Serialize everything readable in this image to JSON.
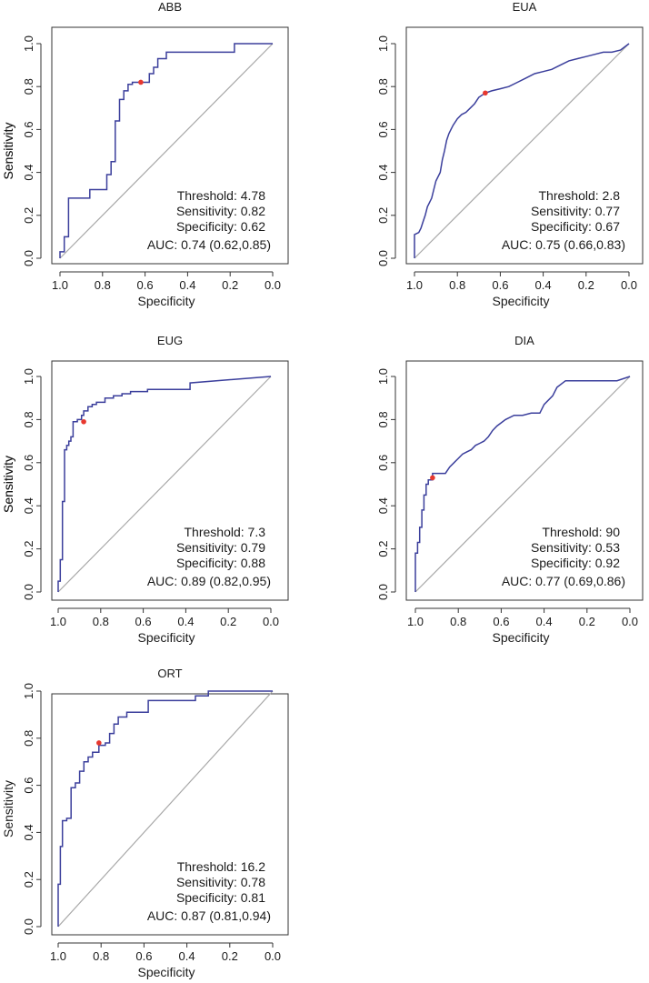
{
  "colors": {
    "curve": "#3b3f9c",
    "point": "#e8382e",
    "reference": "#a8a8a8",
    "frame": "#333333"
  },
  "chart_data": [
    {
      "type": "line",
      "title": "ABB",
      "xlabel": "Specificity",
      "ylabel": "Sensitivity",
      "xlim": [
        1.0,
        0.0
      ],
      "ylim": [
        0.0,
        1.0
      ],
      "xticks": [
        "1.0",
        "0.8",
        "0.6",
        "0.4",
        "0.2",
        "0.0"
      ],
      "yticks": [
        "0.0",
        "0.2",
        "0.4",
        "0.6",
        "0.8",
        "1.0"
      ],
      "series": [
        {
          "name": "ROC",
          "specificity": [
            1.0,
            1.0,
            0.98,
            0.98,
            0.96,
            0.96,
            0.92,
            0.92,
            0.86,
            0.86,
            0.78,
            0.78,
            0.76,
            0.76,
            0.74,
            0.74,
            0.72,
            0.72,
            0.7,
            0.7,
            0.68,
            0.68,
            0.66,
            0.66,
            0.62,
            0.62,
            0.58,
            0.58,
            0.56,
            0.56,
            0.54,
            0.54,
            0.5,
            0.5,
            0.18,
            0.18,
            0.0
          ],
          "sensitivity": [
            0.0,
            0.03,
            0.03,
            0.1,
            0.1,
            0.28,
            0.28,
            0.28,
            0.28,
            0.32,
            0.32,
            0.39,
            0.39,
            0.45,
            0.45,
            0.64,
            0.64,
            0.74,
            0.74,
            0.78,
            0.78,
            0.81,
            0.81,
            0.82,
            0.82,
            0.82,
            0.82,
            0.86,
            0.86,
            0.89,
            0.89,
            0.93,
            0.93,
            0.96,
            0.96,
            1.0,
            1.0
          ]
        }
      ],
      "optimal_point": {
        "specificity": 0.62,
        "sensitivity": 0.82
      },
      "annotations": {
        "threshold": "Threshold: 4.78",
        "sensitivity": "Sensitivity: 0.82",
        "specificity": "Specificity: 0.62",
        "auc": "AUC: 0.74 (0.62,0.85)"
      }
    },
    {
      "type": "line",
      "title": "EUA",
      "xlabel": "Specificity",
      "ylabel": "Sensitivity",
      "xlim": [
        1.0,
        0.0
      ],
      "ylim": [
        0.0,
        1.0
      ],
      "xticks": [
        "1.0",
        "0.8",
        "0.6",
        "0.4",
        "0.2",
        "0.0"
      ],
      "yticks": [
        "0.0",
        "0.2",
        "0.4",
        "0.6",
        "0.8",
        "1.0"
      ],
      "series": [
        {
          "name": "ROC",
          "specificity": [
            1.0,
            1.0,
            0.98,
            0.97,
            0.96,
            0.95,
            0.94,
            0.92,
            0.91,
            0.9,
            0.88,
            0.87,
            0.86,
            0.85,
            0.84,
            0.83,
            0.82,
            0.8,
            0.78,
            0.76,
            0.74,
            0.72,
            0.7,
            0.67,
            0.64,
            0.6,
            0.56,
            0.52,
            0.48,
            0.44,
            0.4,
            0.36,
            0.32,
            0.28,
            0.24,
            0.2,
            0.16,
            0.12,
            0.08,
            0.04,
            0.0
          ],
          "sensitivity": [
            0.0,
            0.11,
            0.12,
            0.14,
            0.17,
            0.2,
            0.24,
            0.28,
            0.32,
            0.36,
            0.4,
            0.46,
            0.5,
            0.55,
            0.58,
            0.6,
            0.62,
            0.65,
            0.67,
            0.68,
            0.7,
            0.72,
            0.75,
            0.77,
            0.78,
            0.79,
            0.8,
            0.82,
            0.84,
            0.86,
            0.87,
            0.88,
            0.9,
            0.92,
            0.93,
            0.94,
            0.95,
            0.96,
            0.96,
            0.97,
            1.0
          ]
        }
      ],
      "optimal_point": {
        "specificity": 0.67,
        "sensitivity": 0.77
      },
      "annotations": {
        "threshold": "Threshold: 2.8",
        "sensitivity": "Sensitivity: 0.77",
        "specificity": "Specificity: 0.67",
        "auc": "AUC: 0.75 (0.66,0.83)"
      }
    },
    {
      "type": "line",
      "title": "EUG",
      "xlabel": "Specificity",
      "ylabel": "Sensitivity",
      "xlim": [
        1.0,
        0.0
      ],
      "ylim": [
        0.0,
        1.0
      ],
      "xticks": [
        "1.0",
        "0.8",
        "0.6",
        "0.4",
        "0.2",
        "0.0"
      ],
      "yticks": [
        "0.0",
        "0.2",
        "0.4",
        "0.6",
        "0.8",
        "1.0"
      ],
      "series": [
        {
          "name": "ROC",
          "specificity": [
            1.0,
            1.0,
            0.99,
            0.99,
            0.98,
            0.98,
            0.97,
            0.97,
            0.96,
            0.96,
            0.95,
            0.95,
            0.94,
            0.94,
            0.93,
            0.93,
            0.91,
            0.91,
            0.89,
            0.89,
            0.88,
            0.88,
            0.86,
            0.86,
            0.84,
            0.84,
            0.82,
            0.82,
            0.78,
            0.78,
            0.74,
            0.74,
            0.7,
            0.7,
            0.66,
            0.66,
            0.58,
            0.58,
            0.38,
            0.38,
            0.0
          ],
          "sensitivity": [
            0.0,
            0.05,
            0.05,
            0.15,
            0.15,
            0.42,
            0.42,
            0.66,
            0.66,
            0.68,
            0.68,
            0.7,
            0.7,
            0.72,
            0.72,
            0.79,
            0.79,
            0.8,
            0.8,
            0.82,
            0.82,
            0.84,
            0.84,
            0.86,
            0.86,
            0.87,
            0.87,
            0.88,
            0.88,
            0.9,
            0.9,
            0.91,
            0.91,
            0.92,
            0.92,
            0.93,
            0.93,
            0.94,
            0.94,
            0.97,
            1.0
          ]
        }
      ],
      "optimal_point": {
        "specificity": 0.88,
        "sensitivity": 0.79
      },
      "annotations": {
        "threshold": "Threshold: 7.3",
        "sensitivity": "Sensitivity: 0.79",
        "specificity": "Specificity: 0.88",
        "auc": "AUC: 0.89 (0.82,0.95)"
      }
    },
    {
      "type": "line",
      "title": "DIA",
      "xlabel": "Specificity",
      "ylabel": "Sensitivity",
      "xlim": [
        1.0,
        0.0
      ],
      "ylim": [
        0.0,
        1.0
      ],
      "xticks": [
        "1.0",
        "0.8",
        "0.6",
        "0.4",
        "0.2",
        "0.0"
      ],
      "yticks": [
        "0.0",
        "0.2",
        "0.4",
        "0.6",
        "0.8",
        "1.0"
      ],
      "series": [
        {
          "name": "ROC",
          "specificity": [
            1.0,
            1.0,
            0.99,
            0.99,
            0.98,
            0.98,
            0.97,
            0.97,
            0.96,
            0.96,
            0.95,
            0.95,
            0.94,
            0.94,
            0.92,
            0.92,
            0.88,
            0.86,
            0.84,
            0.82,
            0.8,
            0.78,
            0.76,
            0.74,
            0.72,
            0.7,
            0.68,
            0.66,
            0.64,
            0.62,
            0.58,
            0.54,
            0.5,
            0.46,
            0.42,
            0.4,
            0.36,
            0.34,
            0.3,
            0.26,
            0.22,
            0.18,
            0.12,
            0.06,
            0.0
          ],
          "sensitivity": [
            0.0,
            0.18,
            0.18,
            0.23,
            0.23,
            0.3,
            0.3,
            0.38,
            0.38,
            0.45,
            0.45,
            0.5,
            0.5,
            0.52,
            0.52,
            0.55,
            0.55,
            0.55,
            0.58,
            0.6,
            0.62,
            0.64,
            0.65,
            0.66,
            0.68,
            0.69,
            0.7,
            0.72,
            0.75,
            0.77,
            0.8,
            0.82,
            0.82,
            0.83,
            0.83,
            0.87,
            0.91,
            0.95,
            0.98,
            0.98,
            0.98,
            0.98,
            0.98,
            0.98,
            1.0
          ]
        }
      ],
      "optimal_point": {
        "specificity": 0.92,
        "sensitivity": 0.53
      },
      "annotations": {
        "threshold": "Threshold: 90",
        "sensitivity": "Sensitivity: 0.53",
        "specificity": "Specificity: 0.92",
        "auc": "AUC: 0.77 (0.69,0.86)"
      }
    },
    {
      "type": "line",
      "title": "ORT",
      "xlabel": "Specificity",
      "ylabel": "Sensitivity",
      "xlim": [
        1.0,
        0.0
      ],
      "ylim": [
        0.0,
        1.0
      ],
      "xticks": [
        "1.0",
        "0.8",
        "0.6",
        "0.4",
        "0.2",
        "0.0"
      ],
      "yticks": [
        "0.0",
        "0.2",
        "0.4",
        "0.6",
        "0.8",
        "1.0"
      ],
      "series": [
        {
          "name": "ROC",
          "specificity": [
            1.0,
            1.0,
            0.99,
            0.99,
            0.98,
            0.98,
            0.96,
            0.96,
            0.94,
            0.94,
            0.92,
            0.92,
            0.9,
            0.9,
            0.88,
            0.88,
            0.86,
            0.86,
            0.84,
            0.84,
            0.81,
            0.81,
            0.78,
            0.78,
            0.76,
            0.76,
            0.74,
            0.74,
            0.72,
            0.72,
            0.68,
            0.68,
            0.58,
            0.58,
            0.36,
            0.36,
            0.3,
            0.3,
            0.0
          ],
          "sensitivity": [
            0.0,
            0.18,
            0.18,
            0.34,
            0.34,
            0.45,
            0.45,
            0.46,
            0.46,
            0.59,
            0.59,
            0.61,
            0.61,
            0.66,
            0.66,
            0.7,
            0.7,
            0.72,
            0.72,
            0.74,
            0.74,
            0.77,
            0.77,
            0.78,
            0.78,
            0.82,
            0.82,
            0.86,
            0.86,
            0.89,
            0.89,
            0.91,
            0.91,
            0.96,
            0.96,
            0.98,
            0.98,
            1.0,
            1.0
          ]
        }
      ],
      "optimal_point": {
        "specificity": 0.81,
        "sensitivity": 0.78
      },
      "annotations": {
        "threshold": "Threshold: 16.2",
        "sensitivity": "Sensitivity: 0.78",
        "specificity": "Specificity: 0.81",
        "auc": "AUC: 0.87 (0.81,0.94)"
      }
    }
  ]
}
